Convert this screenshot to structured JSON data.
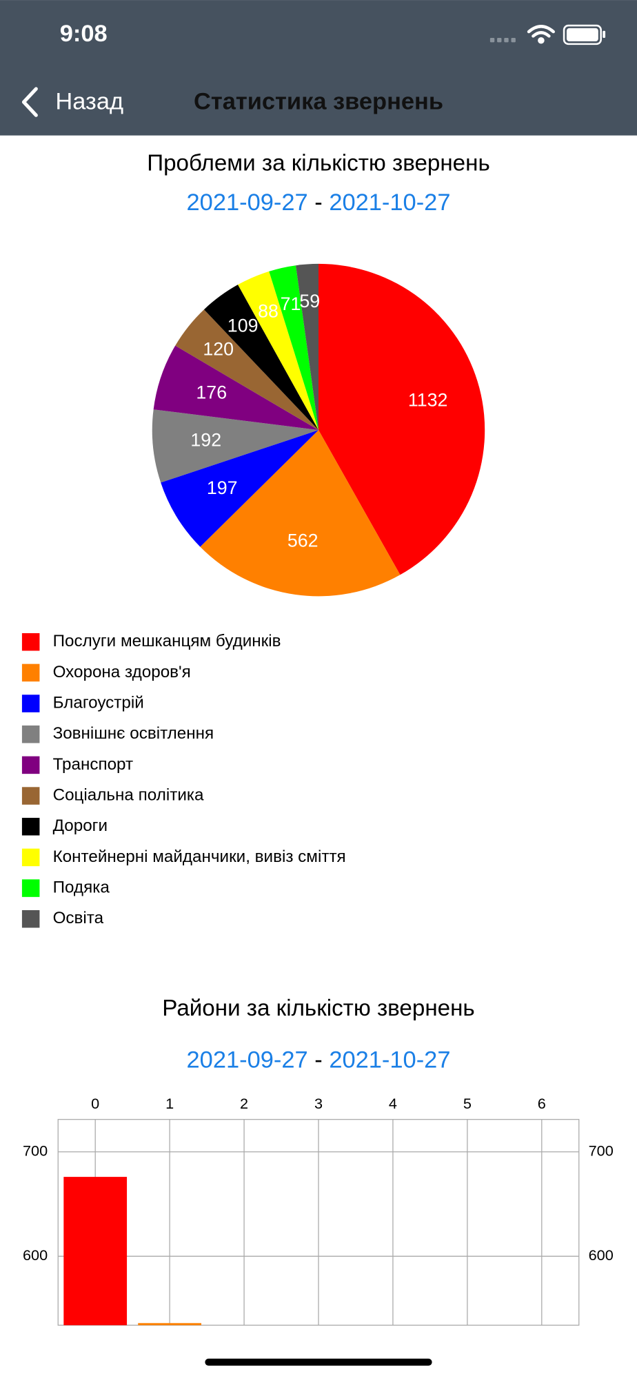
{
  "status_bar": {
    "time": "9:08"
  },
  "nav": {
    "back": "Назад",
    "title": "Статистика звернень"
  },
  "chart_data": [
    {
      "type": "pie",
      "title": "Проблеми за кількістю звернень",
      "date_from": "2021-09-27",
      "date_separator": "-",
      "date_to": "2021-10-27",
      "categories": [
        "Послуги мешканцям будинків",
        "Охорона здоров'я",
        "Благоустрій",
        "Зовнішнє освітлення",
        "Транспорт",
        "Соціальна політика",
        "Дороги",
        "Контейнерні майданчики, вивіз сміття",
        "Подяка",
        "Освіта"
      ],
      "values": [
        1132,
        562,
        197,
        192,
        176,
        120,
        109,
        88,
        71,
        59
      ],
      "colors": [
        "#ff0000",
        "#ff8000",
        "#0000ff",
        "#808080",
        "#800080",
        "#996633",
        "#000000",
        "#ffff00",
        "#00ff00",
        "#555555"
      ]
    },
    {
      "type": "bar",
      "title": "Райони за кількістю звернень",
      "date_from": "2021-09-27",
      "date_separator": "-",
      "date_to": "2021-10-27",
      "x": [
        0,
        1
      ],
      "values": [
        676,
        536
      ],
      "colors": [
        "#ff0000",
        "#ff8000"
      ],
      "xlim": [
        -0.5,
        6.5
      ],
      "xticks": [
        0,
        1,
        2,
        3,
        4,
        5,
        6
      ],
      "ylim": [
        534,
        731
      ],
      "yticks": [
        600,
        700
      ],
      "grid": true
    }
  ]
}
